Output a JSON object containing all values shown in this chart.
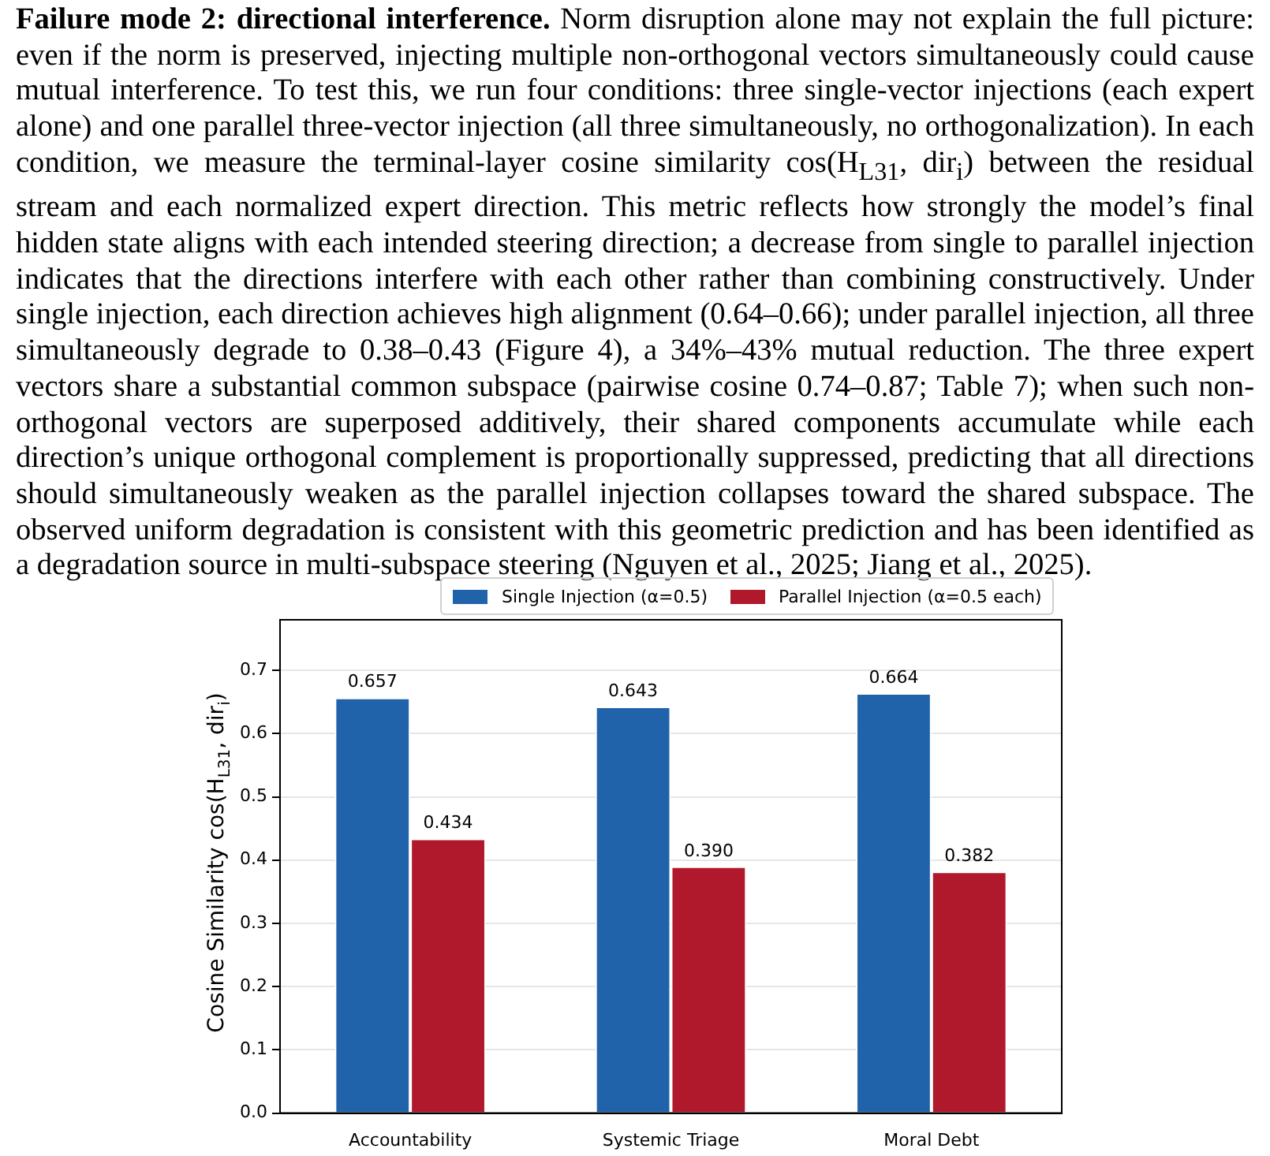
{
  "chart_data": {
    "type": "bar",
    "title": "Failure mode 2: directional interference.",
    "annotations": [
      "Norm disruption alone may not explain the full picture: even if the norm is preserved, injecting multiple non-orthogonal vectors simultaneously could cause mutual interference. To test this, we run four conditions: three single-vector injections (each expert alone) and one parallel three-vector injection (all three simultaneously, no orthogonalization). In each condition, we measure the terminal-layer cosine similarity cos(H$_{L31}$, dir$_{i}$) between the residual stream and each normalized expert direction. This metric reflects how strongly the model’s final hidden state aligns with each intended steering direction; a decrease from single to parallel injection indicates that the directions interfere with each other rather than combining constructively. Under single injection, each direction achieves high alignment (0.64–0.66); under parallel injection, all three simultaneously degrade to 0.38–0.43 (Figure 4), a 34%–43% mutual reduction. The three expert vectors share a substantial common subspace (pairwise cosine 0.74–0.87; Table 7); when such non-orthogonal vectors are superposed additively, their shared components accumulate while each direction’s unique orthogonal complement is proportionally suppressed, predicting that all directions should simultaneously weaken as the parallel injection collapses toward the shared subspace. The observed uniform degradation is consistent with this geometric prediction and has been identified as a degradation source in multi-subspace steering (Nguyen et al., 2025; Jiang et al., 2025)."
    ],
    "ylabel": "Cosine Similarity cos(H$_{L31}$, dir$_{i}$)",
    "categories": [
      "Accountability",
      "Systemic Triage",
      "Moral Debt"
    ],
    "series": [
      {
        "name": "Single Injection (α=0.5)",
        "color": "#2163aa",
        "values": [
          0.657,
          0.643,
          0.664
        ],
        "value_labels": [
          "0.657",
          "0.643",
          "0.664"
        ]
      },
      {
        "name": "Parallel Injection (α=0.5 each)",
        "color": "#b0182b",
        "values": [
          0.434,
          0.39,
          0.382
        ],
        "value_labels": [
          "0.434",
          "0.390",
          "0.382"
        ]
      }
    ],
    "ylim": [
      0,
      0.78
    ],
    "yticks": [
      {
        "value": 0,
        "label": "0.0"
      },
      0.1,
      0.2,
      0.3,
      0.4,
      0.5,
      0.6,
      0.7
    ],
    "grid": "y",
    "legend": "top right"
  }
}
